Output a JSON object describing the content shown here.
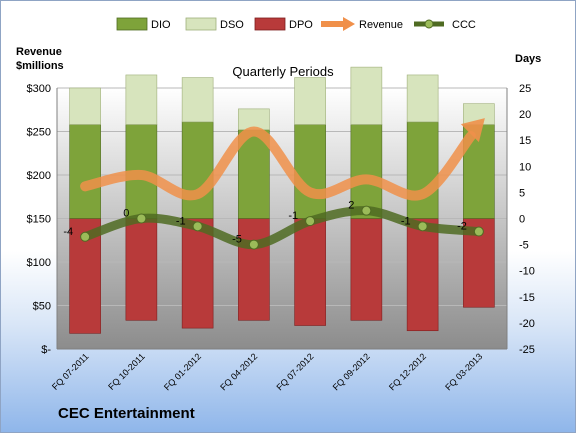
{
  "company": "CEC Entertainment",
  "left_axis_title": [
    "Revenue",
    "$millions"
  ],
  "right_axis_title": "Days",
  "colors": {
    "dio": "#7ea33a",
    "dso": "#d7e4bd",
    "dpo": "#b83a3a",
    "revenue": "#f0904a",
    "ccc_line": "#4f6b22",
    "ccc_marker": "#9bbb59"
  },
  "chart_data": {
    "type": "bar",
    "title": "Quarterly Periods",
    "categories": [
      "FQ 07-2011",
      "FQ 10-2011",
      "FQ 01-2012",
      "FQ 04-2012",
      "FQ 07-2012",
      "FQ 09-2012",
      "FQ 12-2012",
      "FQ 03-2013"
    ],
    "left_axis": {
      "label": "Revenue $millions",
      "min": 0,
      "max": 300,
      "step": 50,
      "tick_labels": [
        "$-",
        "$50",
        "$100",
        "$150",
        "$200",
        "$250",
        "$300"
      ]
    },
    "right_axis": {
      "label": "Days",
      "min": -25,
      "max": 25,
      "step": 5,
      "tick_labels": [
        "-25",
        "-20",
        "-15",
        "-10",
        "-5",
        "0",
        "5",
        "10",
        "15",
        "20",
        "25"
      ]
    },
    "legend": {
      "position": "top",
      "entries": [
        "DIO",
        "DSO",
        "DPO",
        "Revenue",
        "CCC"
      ]
    },
    "series": [
      {
        "name": "DIO",
        "axis": "right",
        "values": [
          18,
          18,
          18.5,
          17,
          18,
          18,
          18.5,
          18
        ]
      },
      {
        "name": "DSO",
        "axis": "right",
        "values": [
          7,
          9.5,
          8.5,
          4,
          9,
          11,
          9,
          4
        ]
      },
      {
        "name": "DPO",
        "axis": "right",
        "values": [
          -22,
          -19.5,
          -21,
          -19.5,
          -20.5,
          -19.5,
          -21.5,
          -17
        ]
      },
      {
        "name": "Revenue",
        "axis": "left",
        "values": [
          187,
          200,
          178,
          250,
          180,
          195,
          178,
          255
        ]
      },
      {
        "name": "CCC",
        "axis": "right",
        "values": [
          -3.5,
          0,
          -1.5,
          -5,
          -0.5,
          1.5,
          -1.5,
          -2.5
        ],
        "data_labels": [
          "-4",
          "0",
          "-1",
          "-5",
          "-1",
          "2",
          "-1",
          "-2"
        ]
      }
    ]
  }
}
